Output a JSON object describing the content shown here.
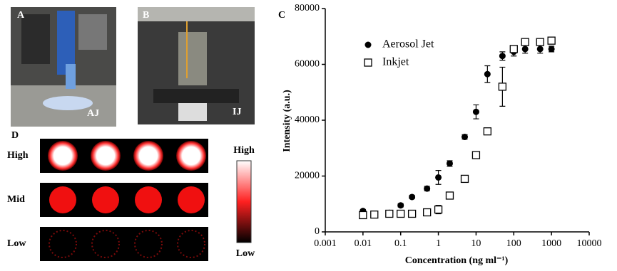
{
  "panels": {
    "a": "A",
    "a_tag": "AJ",
    "b": "B",
    "b_tag": "IJ",
    "d": "D",
    "rows": [
      "High",
      "Mid",
      "Low"
    ],
    "scale_top": "High",
    "scale_bottom": "Low"
  },
  "chart_data": {
    "type": "scatter",
    "panel": "C",
    "x_label": "Concentration (ng ml⁻¹)",
    "y_label": "Intensity (a.u.)",
    "log_x": true,
    "xlim": [
      0.001,
      10000
    ],
    "xticks": [
      0.001,
      0.01,
      0.1,
      1,
      10,
      100,
      1000,
      10000
    ],
    "ylim": [
      0,
      80000
    ],
    "yticks": [
      0,
      20000,
      40000,
      60000,
      80000
    ],
    "x": [
      0.01,
      0.02,
      0.05,
      0.1,
      0.2,
      0.5,
      1,
      2,
      5,
      10,
      20,
      50,
      100,
      200,
      500,
      1000
    ],
    "series": [
      {
        "name": "Aerosol Jet",
        "color": "#000000",
        "marker": "filled-circle",
        "values": [
          7500,
          6500,
          6800,
          9500,
          12500,
          15500,
          19500,
          24500,
          34000,
          43000,
          56500,
          63000,
          64500,
          65500,
          65500,
          65500
        ],
        "errors": [
          500,
          500,
          500,
          600,
          600,
          800,
          2500,
          1000,
          800,
          2500,
          3000,
          1500,
          1500,
          1500,
          1500,
          1000
        ]
      },
      {
        "name": "Inkjet",
        "color": "#000000",
        "marker": "open-square",
        "values": [
          6000,
          6200,
          6500,
          6500,
          6500,
          7000,
          8000,
          13000,
          19000,
          27500,
          36000,
          52000,
          65500,
          68000,
          68000,
          68500
        ],
        "errors": [
          400,
          400,
          400,
          400,
          400,
          500,
          1500,
          800,
          800,
          1000,
          1000,
          7000,
          1000,
          800,
          800,
          800
        ]
      }
    ]
  }
}
